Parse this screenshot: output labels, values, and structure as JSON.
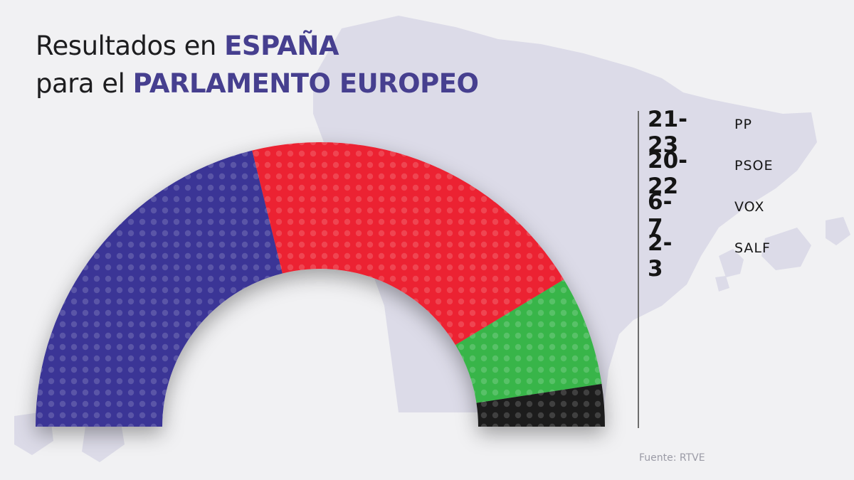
{
  "title": {
    "line1_prefix": "Resultados en ",
    "line1_highlight": "ESPAÑA",
    "line2_prefix": "para el ",
    "line2_highlight": "PARLAMENTO EUROPEO"
  },
  "chart_data": {
    "type": "pie",
    "subtype": "half-donut",
    "title": "Resultados en ESPAÑA para el PARLAMENTO EUROPEO",
    "series": [
      {
        "name": "PP",
        "range": "21-23",
        "low": 21,
        "high": 23,
        "color": "#3a3596"
      },
      {
        "name": "PSOE",
        "range": "20-22",
        "low": 20,
        "high": 22,
        "color": "#ec2130"
      },
      {
        "name": "VOX",
        "range": "6-7",
        "low": 6,
        "high": 7,
        "color": "#39b54a"
      },
      {
        "name": "SALF",
        "range": "2-3",
        "low": 2,
        "high": 3,
        "color": "#1c1c1c"
      }
    ],
    "legend_position": "right"
  },
  "source": "Fuente: RTVE",
  "colors": {
    "background": "#f1f1f3",
    "title_highlight": "#463f8f",
    "map_silhouette": "#dcdbe8"
  }
}
